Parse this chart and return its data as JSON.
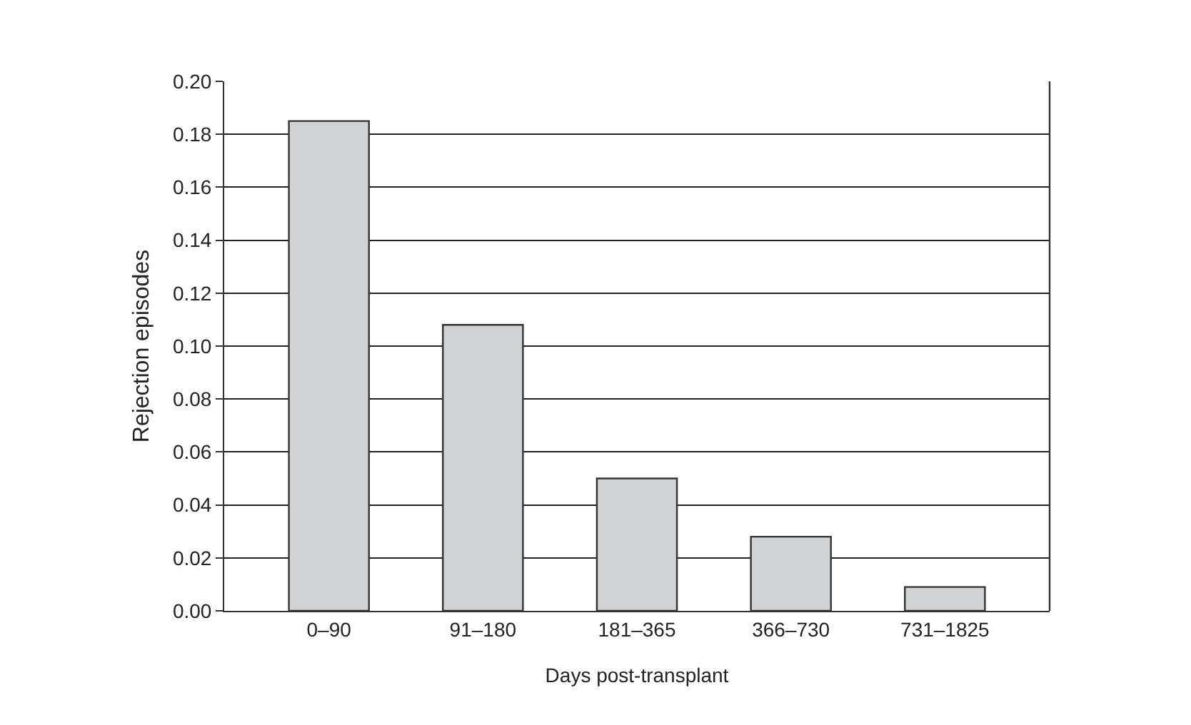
{
  "chart_data": {
    "type": "bar",
    "xlabel": "Days post-transplant",
    "ylabel": "Rejection episodes",
    "categories": [
      "0–90",
      "91–180",
      "181–365",
      "366–730",
      "731–1825"
    ],
    "values": [
      0.185,
      0.108,
      0.05,
      0.028,
      0.009
    ],
    "color": "#d1d2d4",
    "ylim": [
      0,
      0.2
    ],
    "yticks": [
      {
        "value": 0,
        "label": "0.00"
      },
      {
        "value": 0.02,
        "label": "0.02"
      },
      {
        "value": 0.04,
        "label": "0.04"
      },
      {
        "value": 0.06,
        "label": "0.06"
      },
      {
        "value": 0.08,
        "label": "0.08"
      },
      {
        "value": 0.1,
        "label": "0.10"
      },
      {
        "value": 0.12,
        "label": "0.12"
      },
      {
        "value": 0.14,
        "label": "0.14"
      },
      {
        "value": 0.16,
        "label": "0.16"
      },
      {
        "value": 0.18,
        "label": "0.18"
      },
      {
        "value": 0.2,
        "label": "0.20"
      }
    ],
    "grid": "y"
  }
}
